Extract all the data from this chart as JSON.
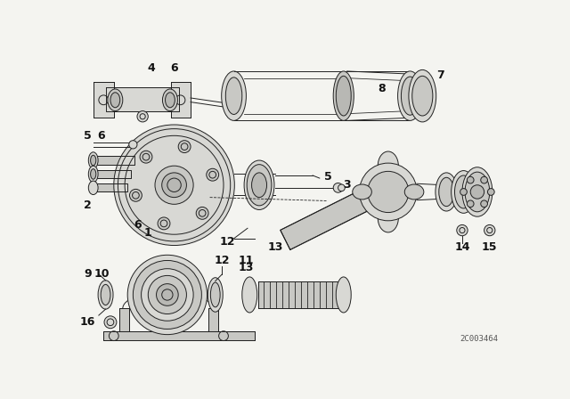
{
  "background_color": "#f4f4f0",
  "line_color": "#222222",
  "watermark": "2C003464",
  "fig_width": 6.4,
  "fig_height": 4.48,
  "lw": 0.7
}
